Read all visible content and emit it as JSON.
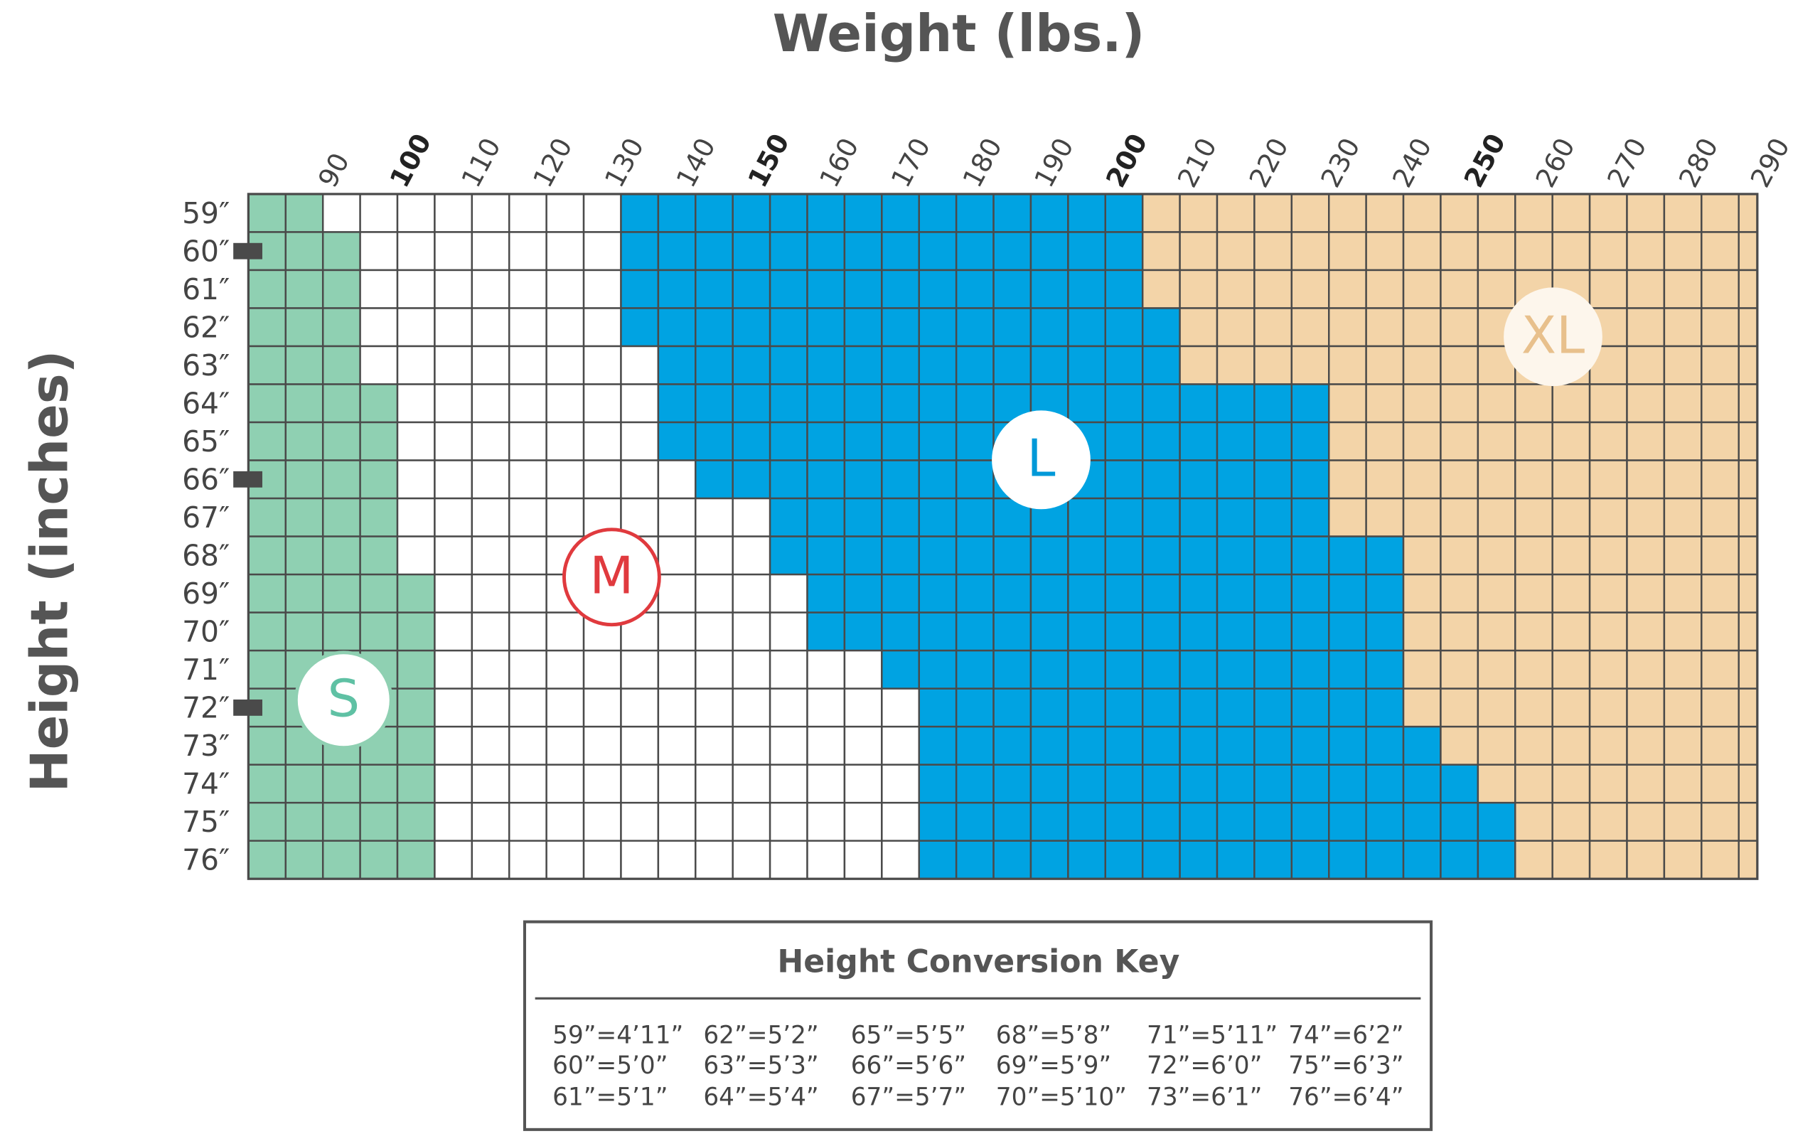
{
  "title": "Weight (lbs.)",
  "y_axis_label": "Height (inches)",
  "weights": [
    90,
    100,
    110,
    120,
    130,
    140,
    150,
    160,
    170,
    180,
    190,
    200,
    210,
    220,
    230,
    240,
    250,
    260,
    270,
    280,
    290
  ],
  "heights": [
    "59″",
    "60″",
    "61″",
    "62″",
    "63″",
    "64″",
    "65″",
    "66″",
    "67″",
    "68″",
    "69″",
    "70″",
    "71″",
    "72″",
    "73″",
    "74″",
    "75″",
    "76″"
  ],
  "sizes": [
    "S",
    "M",
    "L",
    "XL"
  ],
  "key": {
    "title": "Height Conversion Key",
    "entries": [
      "59”=4’11”",
      "60”=5’0”",
      "61”=5’1”",
      "62”=5’2”",
      "63”=5’3”",
      "64”=5’4”",
      "65”=5’5”",
      "66”=5’6”",
      "67”=5’7”",
      "68”=5’8”",
      "69”=5’9”",
      "70”=5’10”",
      "71”=5’11”",
      "72”=6’0”",
      "73”=6’1”",
      "74”=6’2”",
      "75”=6’3”",
      "76”=6’4”"
    ]
  }
}
